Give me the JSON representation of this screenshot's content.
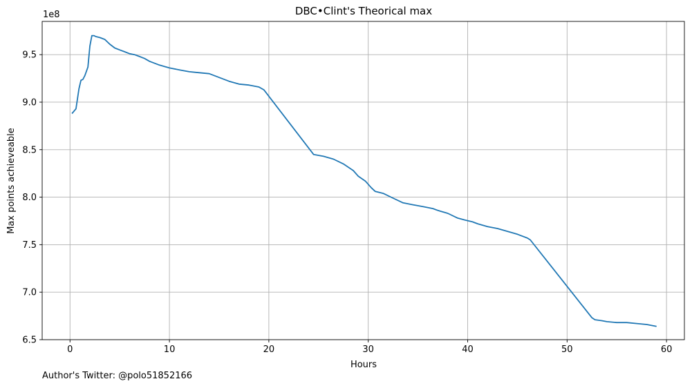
{
  "footer_note": "Author's Twitter: @polo51852166",
  "chart_data": {
    "type": "line",
    "title": "DBC•Clint's Theorical max",
    "xlabel": "Hours",
    "ylabel": "Max points achieveable",
    "y_offset_label": "1e8",
    "xlim": [
      -2.8,
      61.8
    ],
    "ylim": [
      6.5,
      9.85
    ],
    "x_ticks": [
      0,
      10,
      20,
      30,
      40,
      50,
      60
    ],
    "x_tick_labels": [
      "0",
      "10",
      "20",
      "30",
      "40",
      "50",
      "60"
    ],
    "y_ticks": [
      6.5,
      7.0,
      7.5,
      8.0,
      8.5,
      9.0,
      9.5
    ],
    "y_tick_labels": [
      "6.5",
      "7.0",
      "7.5",
      "8.0",
      "8.5",
      "9.0",
      "9.5"
    ],
    "grid": true,
    "line_color": "#1f77b4",
    "series": [
      {
        "x": [
          0.2,
          0.6,
          0.9,
          1.1,
          1.3,
          1.5,
          1.8,
          2.0,
          2.2,
          2.4,
          2.6,
          3.0,
          3.5,
          4.0,
          4.5,
          5.0,
          5.5,
          6.0,
          6.5,
          7.0,
          7.5,
          8.0,
          9.0,
          10.0,
          11.0,
          12.0,
          13.0,
          14.0,
          15.0,
          16.0,
          17.0,
          18.0,
          19.0,
          19.5,
          24.5,
          25.5,
          26.5,
          27.5,
          28.5,
          29.0,
          29.7,
          30.3,
          30.7,
          31.5,
          32.5,
          33.5,
          34.5,
          35.5,
          36.5,
          37.0,
          38.0,
          39.0,
          39.7,
          40.5,
          41.0,
          42.0,
          43.0,
          44.0,
          45.0,
          46.0,
          46.3,
          52.5,
          52.8,
          53.5,
          54.0,
          55.0,
          56.0,
          57.0,
          58.0,
          59.0
        ],
        "y": [
          8.88,
          8.93,
          9.14,
          9.23,
          9.24,
          9.28,
          9.37,
          9.59,
          9.7,
          9.7,
          9.69,
          9.68,
          9.66,
          9.61,
          9.57,
          9.55,
          9.53,
          9.51,
          9.5,
          9.48,
          9.46,
          9.43,
          9.39,
          9.36,
          9.34,
          9.32,
          9.31,
          9.3,
          9.26,
          9.22,
          9.19,
          9.18,
          9.16,
          9.13,
          8.45,
          8.43,
          8.4,
          8.35,
          8.28,
          8.22,
          8.17,
          8.1,
          8.06,
          8.04,
          7.99,
          7.94,
          7.92,
          7.9,
          7.88,
          7.86,
          7.83,
          7.78,
          7.76,
          7.74,
          7.72,
          7.69,
          7.67,
          7.64,
          7.61,
          7.57,
          7.55,
          6.73,
          6.71,
          6.7,
          6.69,
          6.68,
          6.68,
          6.67,
          6.66,
          6.64
        ]
      }
    ]
  }
}
